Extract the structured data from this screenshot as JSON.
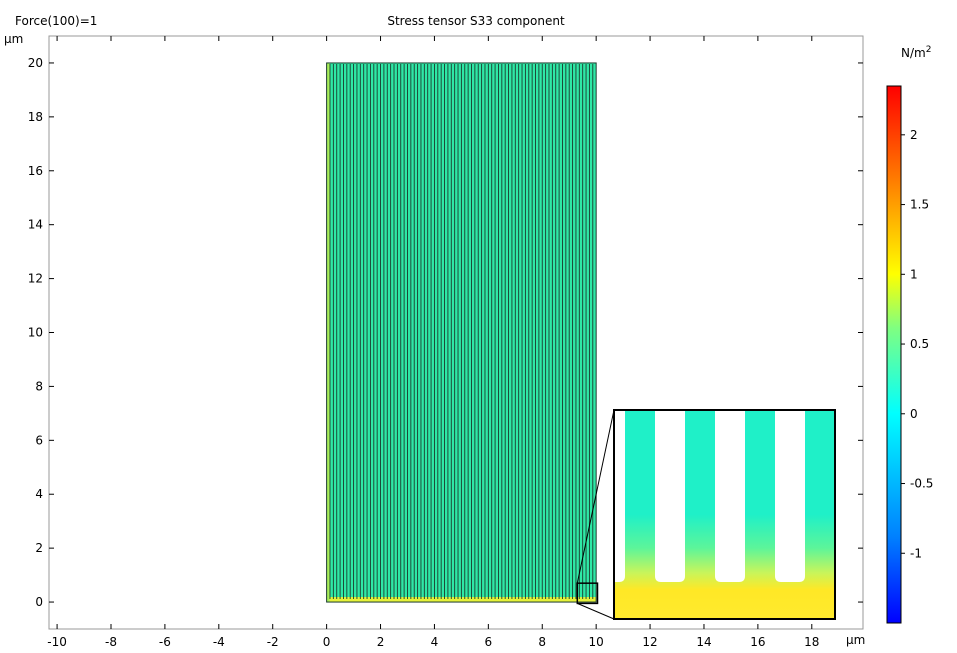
{
  "header": {
    "parameter_label": "Force(100)=1"
  },
  "chart_data": {
    "type": "heatmap",
    "title": "Stress tensor S33 component",
    "xlabel": "µm",
    "ylabel": "µm",
    "xlim": [
      -10.3,
      19.9
    ],
    "ylim": [
      -1.0,
      21.0
    ],
    "x_ticks": [
      -10,
      -8,
      -6,
      -4,
      -2,
      0,
      2,
      4,
      6,
      8,
      10,
      12,
      14,
      16,
      18
    ],
    "y_ticks": [
      0,
      2,
      4,
      6,
      8,
      10,
      12,
      14,
      16,
      18,
      20
    ],
    "domain": {
      "x_range": [
        0,
        10
      ],
      "y_range": [
        0,
        20
      ],
      "fill_color": "#2fe8a6",
      "line_count": 80
    },
    "zoom_box": {
      "x_range": [
        9.3,
        10.05
      ],
      "y_range": [
        -0.05,
        0.7
      ]
    },
    "inset": {
      "slots": 3,
      "background": "#1ff0c8",
      "hot_color": "#ffe826"
    },
    "colorbar": {
      "unit": "N/m",
      "unit_exponent": "2",
      "min": -1.5,
      "max": 2.35,
      "ticks": [
        -1,
        -0.5,
        0,
        0.5,
        1,
        1.5,
        2
      ],
      "colors": [
        "#0000ff",
        "#0080ff",
        "#00ffff",
        "#80ff80",
        "#ffff00",
        "#ff8000",
        "#ff0000"
      ]
    }
  }
}
